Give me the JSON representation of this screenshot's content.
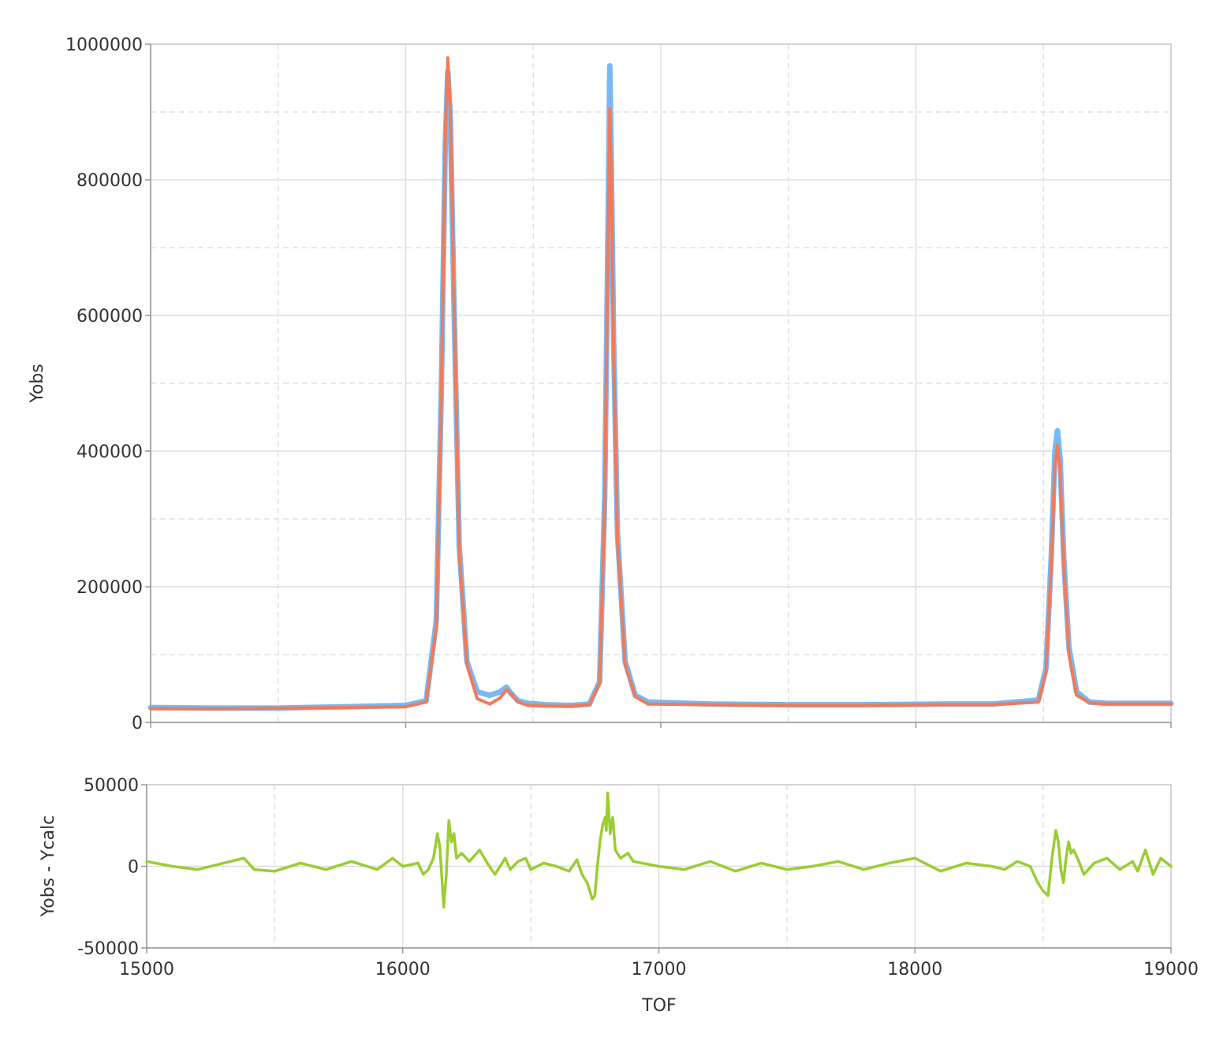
{
  "chart_data": [
    {
      "type": "line",
      "panel": "main",
      "title": "",
      "xlabel": "",
      "ylabel": "Yobs",
      "xlim": [
        15000,
        19000
      ],
      "ylim": [
        0,
        1000000
      ],
      "x_ticks": [
        15000,
        16000,
        17000,
        18000,
        19000
      ],
      "y_ticks": [
        0,
        200000,
        400000,
        600000,
        800000,
        1000000
      ],
      "y_tick_labels": [
        "0",
        "200000",
        "400000",
        "600000",
        "800000",
        "1000000"
      ],
      "grid": true,
      "legend": "none",
      "series": [
        {
          "role": "observed",
          "color": "#79b8f3",
          "x": [
            15000,
            15250,
            15500,
            15750,
            16000,
            16080,
            16120,
            16140,
            16155,
            16165,
            16175,
            16190,
            16210,
            16240,
            16280,
            16330,
            16370,
            16395,
            16410,
            16440,
            16480,
            16550,
            16650,
            16720,
            16760,
            16780,
            16795,
            16800,
            16805,
            16815,
            16830,
            16860,
            16900,
            16950,
            17200,
            17500,
            17800,
            18100,
            18300,
            18480,
            18510,
            18530,
            18545,
            18555,
            18565,
            18580,
            18600,
            18630,
            18680,
            18750,
            19000
          ],
          "y": [
            22000,
            21000,
            21000,
            23000,
            25000,
            32000,
            150000,
            500000,
            850000,
            960000,
            890000,
            600000,
            260000,
            90000,
            45000,
            40000,
            45000,
            52000,
            44000,
            32000,
            28000,
            26000,
            25000,
            27000,
            60000,
            330000,
            790000,
            968000,
            850000,
            560000,
            280000,
            90000,
            40000,
            30000,
            27000,
            26000,
            26000,
            27000,
            27000,
            33000,
            80000,
            240000,
            400000,
            430000,
            390000,
            240000,
            110000,
            45000,
            30000,
            28000,
            28000
          ]
        },
        {
          "role": "calculated",
          "color": "#f07b5a",
          "x": [
            15000,
            15250,
            15500,
            15750,
            16000,
            16080,
            16120,
            16140,
            16155,
            16165,
            16175,
            16190,
            16210,
            16240,
            16280,
            16330,
            16370,
            16395,
            16410,
            16440,
            16480,
            16550,
            16650,
            16720,
            16760,
            16780,
            16795,
            16800,
            16805,
            16815,
            16830,
            16860,
            16900,
            16950,
            17200,
            17500,
            17800,
            18100,
            18300,
            18480,
            18510,
            18530,
            18545,
            18555,
            18565,
            18580,
            18600,
            18630,
            18680,
            18750,
            19000
          ],
          "y": [
            20000,
            20000,
            21000,
            22000,
            23000,
            30000,
            140000,
            490000,
            860000,
            980000,
            900000,
            610000,
            250000,
            85000,
            35000,
            27000,
            36000,
            48000,
            44000,
            30000,
            25000,
            24000,
            24000,
            26000,
            58000,
            320000,
            760000,
            905000,
            820000,
            540000,
            270000,
            85000,
            38000,
            27000,
            26000,
            25000,
            25000,
            26000,
            26000,
            30000,
            75000,
            230000,
            380000,
            408000,
            370000,
            230000,
            100000,
            40000,
            29000,
            27000,
            27000
          ]
        }
      ]
    },
    {
      "type": "line",
      "panel": "residual",
      "title": "",
      "xlabel": "TOF",
      "ylabel": "Yobs - Ycalc",
      "xlim": [
        15000,
        19000
      ],
      "ylim": [
        -50000,
        50000
      ],
      "x_ticks": [
        15000,
        16000,
        17000,
        18000,
        19000
      ],
      "x_tick_labels": [
        "15000",
        "16000",
        "17000",
        "18000",
        "19000"
      ],
      "y_ticks": [
        -50000,
        0,
        50000
      ],
      "y_tick_labels": [
        "-50000",
        "0",
        "50000"
      ],
      "grid": true,
      "legend": "none",
      "series": [
        {
          "role": "difference",
          "color": "#9acd32",
          "x": [
            15000,
            15100,
            15200,
            15300,
            15380,
            15420,
            15500,
            15600,
            15700,
            15800,
            15900,
            15960,
            16000,
            16060,
            16080,
            16100,
            16120,
            16135,
            16145,
            16160,
            16170,
            16180,
            16190,
            16200,
            16210,
            16230,
            16260,
            16300,
            16330,
            16360,
            16380,
            16400,
            16420,
            16450,
            16480,
            16500,
            16550,
            16600,
            16650,
            16680,
            16700,
            16720,
            16740,
            16750,
            16760,
            16770,
            16780,
            16790,
            16795,
            16800,
            16810,
            16820,
            16830,
            16850,
            16880,
            16900,
            17000,
            17100,
            17200,
            17300,
            17400,
            17500,
            17600,
            17700,
            17800,
            17900,
            18000,
            18100,
            18200,
            18300,
            18350,
            18400,
            18450,
            18480,
            18500,
            18520,
            18535,
            18550,
            18560,
            18570,
            18580,
            18590,
            18600,
            18610,
            18620,
            18640,
            18660,
            18700,
            18750,
            18800,
            18850,
            18870,
            18900,
            18930,
            18960,
            19000
          ],
          "y": [
            3000,
            0,
            -2000,
            2000,
            5000,
            -2000,
            -3000,
            2000,
            -2000,
            3000,
            -2000,
            5000,
            0,
            2000,
            -5000,
            -2000,
            5000,
            20000,
            12000,
            -25000,
            -5000,
            28000,
            15000,
            20000,
            5000,
            8000,
            3000,
            10000,
            2000,
            -5000,
            0,
            5000,
            -2000,
            3000,
            5000,
            -2000,
            2000,
            0,
            -3000,
            4000,
            -5000,
            -10000,
            -20000,
            -18000,
            0,
            15000,
            25000,
            30000,
            22000,
            45000,
            20000,
            30000,
            10000,
            5000,
            8000,
            3000,
            0,
            -2000,
            3000,
            -3000,
            2000,
            -2000,
            0,
            3000,
            -2000,
            2000,
            5000,
            -3000,
            2000,
            0,
            -2000,
            3000,
            0,
            -10000,
            -15000,
            -18000,
            5000,
            22000,
            15000,
            -2000,
            -10000,
            5000,
            15000,
            8000,
            10000,
            3000,
            -5000,
            2000,
            5000,
            -2000,
            3000,
            -3000,
            10000,
            -5000,
            5000,
            0
          ]
        }
      ]
    }
  ]
}
